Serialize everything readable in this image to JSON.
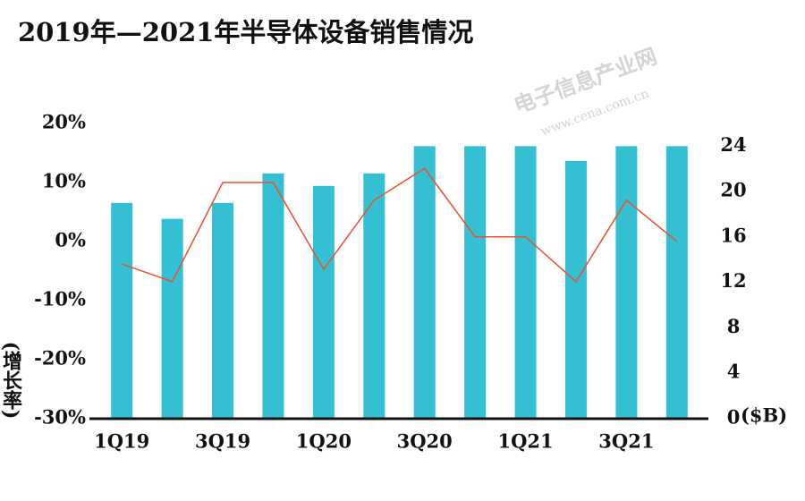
{
  "chart_data": {
    "type": "bar_line",
    "title": "2019年—2021年半导体设备销售情况",
    "y_label": "(增长率)",
    "y2_label": "($B)",
    "watermark": [
      "电子信息产业网",
      "www.cena.com.cn"
    ],
    "categories": [
      "1Q19",
      null,
      "3Q19",
      null,
      "1Q20",
      null,
      "3Q20",
      null,
      "1Q21",
      null,
      "3Q21",
      null
    ],
    "ylim": [
      -30,
      20
    ],
    "yticks": [
      {
        "value": -30,
        "label": "-30%"
      },
      {
        "value": -20,
        "label": "-20%"
      },
      {
        "value": -10,
        "label": "-10%"
      },
      {
        "value": 0,
        "label": "0%"
      },
      {
        "value": 10,
        "label": "10%"
      },
      {
        "value": 20,
        "label": "20%"
      }
    ],
    "y2lim": [
      0,
      26
    ],
    "y2ticks": [
      0,
      4,
      8,
      12,
      16,
      20,
      24
    ],
    "series": [
      {
        "type": "bar",
        "axis": "y2",
        "color": "#35bfd3",
        "values": [
          19,
          17.6,
          19,
          21.6,
          20.5,
          21.6,
          24,
          24,
          24,
          22.7,
          24,
          24
        ]
      },
      {
        "type": "line",
        "color": "#e8502a",
        "values": [
          -3.8,
          -6.8,
          10,
          10,
          -4.7,
          7,
          12.4,
          0.8,
          0.8,
          -6.8,
          7,
          0
        ]
      }
    ]
  }
}
